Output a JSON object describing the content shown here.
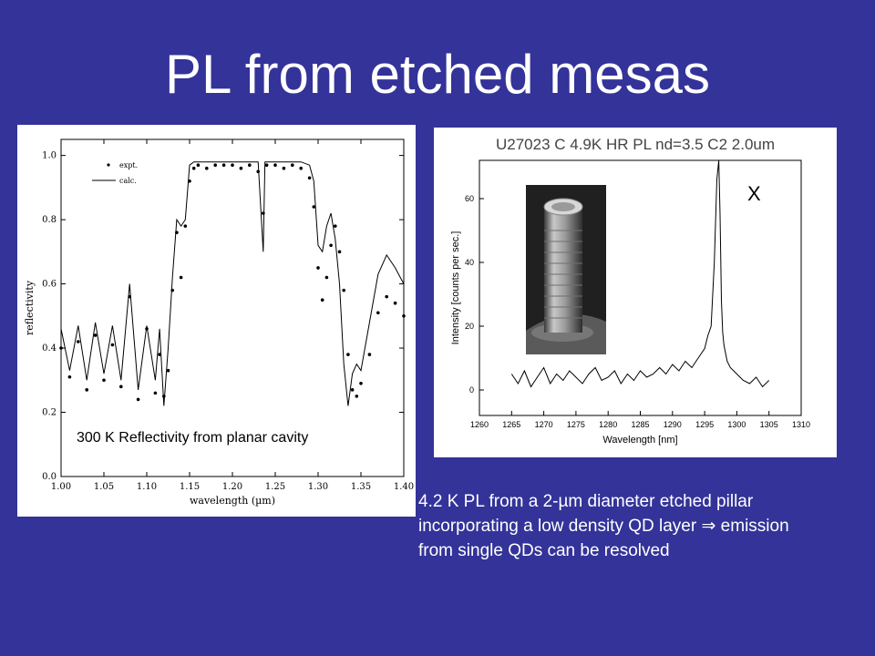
{
  "slide": {
    "title": "PL from etched mesas",
    "left_caption": "300 K Reflectivity from planar cavity",
    "right_caption": "4.2 K PL from a 2-µm diameter etched pillar incorporating a low density QD layer  ⇒ emission from single QDs can be resolved",
    "peak_label": "X"
  },
  "chart_data": [
    {
      "type": "line",
      "title": "",
      "xlabel": "wavelength (µm)",
      "ylabel": "reflectivity",
      "xlim": [
        1.0,
        1.4
      ],
      "ylim": [
        0.0,
        1.05
      ],
      "xticks": [
        "1.00",
        "1.05",
        "1.10",
        "1.15",
        "1.20",
        "1.25",
        "1.30",
        "1.35",
        "1.40"
      ],
      "yticks": [
        "0.0",
        "0.2",
        "0.4",
        "0.6",
        "0.8",
        "1.0"
      ],
      "legend": {
        "position": "top-left",
        "entries": [
          "expt.",
          "calc."
        ]
      },
      "series": [
        {
          "name": "expt.",
          "style": "dots",
          "x": [
            1.0,
            1.01,
            1.02,
            1.03,
            1.04,
            1.05,
            1.06,
            1.07,
            1.08,
            1.09,
            1.1,
            1.11,
            1.115,
            1.12,
            1.125,
            1.13,
            1.135,
            1.14,
            1.145,
            1.15,
            1.155,
            1.16,
            1.17,
            1.18,
            1.19,
            1.2,
            1.21,
            1.22,
            1.23,
            1.236,
            1.24,
            1.25,
            1.26,
            1.27,
            1.28,
            1.29,
            1.295,
            1.3,
            1.305,
            1.31,
            1.315,
            1.32,
            1.325,
            1.33,
            1.335,
            1.34,
            1.345,
            1.35,
            1.36,
            1.37,
            1.38,
            1.39,
            1.4
          ],
          "y": [
            0.4,
            0.31,
            0.42,
            0.27,
            0.44,
            0.3,
            0.41,
            0.28,
            0.56,
            0.24,
            0.46,
            0.26,
            0.38,
            0.25,
            0.33,
            0.58,
            0.76,
            0.62,
            0.78,
            0.92,
            0.96,
            0.97,
            0.96,
            0.97,
            0.97,
            0.97,
            0.96,
            0.97,
            0.95,
            0.82,
            0.97,
            0.97,
            0.96,
            0.97,
            0.96,
            0.93,
            0.84,
            0.65,
            0.55,
            0.62,
            0.72,
            0.78,
            0.7,
            0.58,
            0.38,
            0.27,
            0.25,
            0.29,
            0.38,
            0.51,
            0.56,
            0.54,
            0.5
          ]
        },
        {
          "name": "calc.",
          "style": "line",
          "x": [
            1.0,
            1.01,
            1.02,
            1.03,
            1.04,
            1.05,
            1.06,
            1.07,
            1.08,
            1.09,
            1.1,
            1.11,
            1.115,
            1.12,
            1.125,
            1.13,
            1.135,
            1.14,
            1.145,
            1.15,
            1.155,
            1.16,
            1.17,
            1.18,
            1.19,
            1.2,
            1.21,
            1.22,
            1.23,
            1.236,
            1.238,
            1.24,
            1.25,
            1.26,
            1.27,
            1.28,
            1.29,
            1.295,
            1.3,
            1.305,
            1.31,
            1.315,
            1.32,
            1.325,
            1.33,
            1.335,
            1.34,
            1.345,
            1.35,
            1.36,
            1.37,
            1.38,
            1.39,
            1.4
          ],
          "y": [
            0.46,
            0.33,
            0.47,
            0.3,
            0.48,
            0.32,
            0.47,
            0.3,
            0.6,
            0.27,
            0.47,
            0.3,
            0.46,
            0.22,
            0.4,
            0.62,
            0.8,
            0.78,
            0.8,
            0.97,
            0.98,
            0.98,
            0.98,
            0.98,
            0.98,
            0.98,
            0.98,
            0.98,
            0.98,
            0.7,
            0.98,
            0.98,
            0.98,
            0.98,
            0.98,
            0.98,
            0.97,
            0.92,
            0.72,
            0.7,
            0.78,
            0.82,
            0.74,
            0.6,
            0.35,
            0.22,
            0.32,
            0.35,
            0.33,
            0.48,
            0.63,
            0.69,
            0.65,
            0.6
          ]
        }
      ]
    },
    {
      "type": "line",
      "title": "U27023 C 4.9K HR PL nd=3.5 C2 2.0um",
      "xlabel": "Wavelength [nm]",
      "ylabel": "Intensity [counts per sec.]",
      "xlim": [
        1260,
        1310
      ],
      "ylim": [
        -8,
        72
      ],
      "xticks": [
        "1260",
        "1265",
        "1270",
        "1275",
        "1280",
        "1285",
        "1290",
        "1295",
        "1300",
        "1305",
        "1310"
      ],
      "yticks": [
        "0",
        "20",
        "40",
        "60"
      ],
      "series": [
        {
          "name": "",
          "x": [
            1265,
            1266,
            1267,
            1268,
            1269,
            1270,
            1271,
            1272,
            1273,
            1274,
            1275,
            1276,
            1277,
            1278,
            1279,
            1280,
            1281,
            1282,
            1283,
            1284,
            1285,
            1286,
            1287,
            1288,
            1289,
            1290,
            1291,
            1292,
            1293,
            1294,
            1295,
            1295.5,
            1296,
            1296.5,
            1296.9,
            1297.2,
            1297.4,
            1297.6,
            1297.8,
            1298.0,
            1298.2,
            1298.5,
            1299,
            1299.5,
            1300,
            1300.5,
            1301,
            1302,
            1303,
            1304,
            1305
          ],
          "y": [
            5,
            2,
            6,
            1,
            4,
            7,
            2,
            5,
            3,
            6,
            4,
            2,
            5,
            7,
            3,
            4,
            6,
            2,
            5,
            3,
            6,
            4,
            5,
            7,
            5,
            8,
            6,
            9,
            7,
            10,
            13,
            17,
            20,
            40,
            66,
            72,
            55,
            28,
            18,
            14,
            12,
            9,
            7,
            6,
            5,
            4,
            3,
            2,
            4,
            1,
            3
          ]
        }
      ]
    }
  ]
}
